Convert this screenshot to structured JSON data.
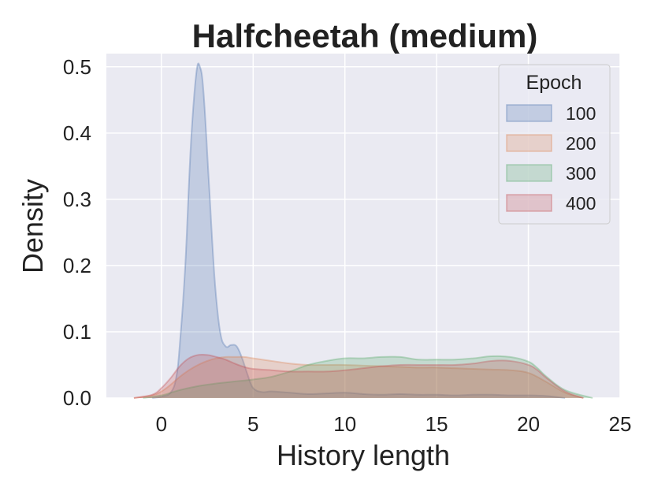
{
  "chart_data": {
    "type": "area",
    "title": "Halfcheetah (medium)",
    "xlabel": "History length",
    "ylabel": "Density",
    "xlim": [
      -3,
      25
    ],
    "ylim": [
      0,
      0.52
    ],
    "xticks": [
      0,
      5,
      10,
      15,
      20,
      25
    ],
    "xtick_labels": [
      "0",
      "5",
      "10",
      "15",
      "20",
      "25"
    ],
    "yticks": [
      0.0,
      0.1,
      0.2,
      0.3,
      0.4,
      0.5
    ],
    "ytick_labels": [
      "0.0",
      "0.1",
      "0.2",
      "0.3",
      "0.4",
      "0.5"
    ],
    "grid": true,
    "legend": {
      "title": "Epoch",
      "placement": "top-right"
    },
    "series": [
      {
        "name": "100",
        "color": "#4c72b0",
        "x": [
          -0.5,
          0.0,
          0.5,
          0.8,
          1.0,
          1.3,
          1.6,
          1.9,
          2.1,
          2.3,
          2.6,
          2.9,
          3.2,
          3.5,
          3.8,
          4.1,
          4.4,
          4.7,
          5.0,
          5.5,
          6.0,
          7.0,
          8.0,
          9.0,
          10.0,
          11.0,
          12.0,
          13.0,
          14.0,
          15.0,
          16.0,
          17.0,
          18.0,
          19.0,
          20.0,
          21.0,
          22.0
        ],
        "y": [
          0.0,
          0.002,
          0.008,
          0.03,
          0.08,
          0.2,
          0.38,
          0.49,
          0.5,
          0.46,
          0.32,
          0.18,
          0.1,
          0.078,
          0.08,
          0.078,
          0.06,
          0.035,
          0.015,
          0.009,
          0.01,
          0.008,
          0.006,
          0.007,
          0.008,
          0.006,
          0.005,
          0.006,
          0.005,
          0.005,
          0.004,
          0.005,
          0.005,
          0.004,
          0.004,
          0.003,
          0.0
        ]
      },
      {
        "name": "200",
        "color": "#dd8452",
        "x": [
          -1.5,
          -0.5,
          0.0,
          0.5,
          1.0,
          1.5,
          2.0,
          2.5,
          3.0,
          3.5,
          4.0,
          4.5,
          5.0,
          6.0,
          7.0,
          8.0,
          9.0,
          10.0,
          11.0,
          12.0,
          13.0,
          14.0,
          15.0,
          16.0,
          17.0,
          18.0,
          19.0,
          20.0,
          21.0,
          22.0,
          23.0
        ],
        "y": [
          0.0,
          0.004,
          0.01,
          0.02,
          0.032,
          0.042,
          0.05,
          0.056,
          0.06,
          0.062,
          0.062,
          0.062,
          0.06,
          0.056,
          0.052,
          0.05,
          0.05,
          0.05,
          0.049,
          0.048,
          0.047,
          0.046,
          0.046,
          0.045,
          0.044,
          0.043,
          0.042,
          0.038,
          0.024,
          0.008,
          0.0
        ]
      },
      {
        "name": "300",
        "color": "#55a868",
        "x": [
          -1.0,
          0.0,
          1.0,
          2.0,
          3.0,
          4.0,
          5.0,
          6.0,
          7.0,
          8.0,
          9.0,
          10.0,
          11.0,
          12.0,
          13.0,
          14.0,
          15.0,
          16.0,
          17.0,
          18.0,
          19.0,
          20.0,
          20.5,
          21.0,
          22.0,
          23.5
        ],
        "y": [
          0.0,
          0.004,
          0.012,
          0.018,
          0.022,
          0.025,
          0.028,
          0.032,
          0.04,
          0.05,
          0.056,
          0.06,
          0.06,
          0.062,
          0.062,
          0.058,
          0.058,
          0.058,
          0.06,
          0.063,
          0.062,
          0.055,
          0.045,
          0.032,
          0.012,
          0.0
        ]
      },
      {
        "name": "400",
        "color": "#c44e52",
        "x": [
          -1.5,
          -0.5,
          0.0,
          0.5,
          1.0,
          1.5,
          2.0,
          2.5,
          3.0,
          3.5,
          4.0,
          4.5,
          5.0,
          6.0,
          7.0,
          8.0,
          9.0,
          10.0,
          11.0,
          12.0,
          13.0,
          14.0,
          15.0,
          16.0,
          17.0,
          18.0,
          19.0,
          20.0,
          20.5,
          21.0,
          22.0,
          23.0
        ],
        "y": [
          0.0,
          0.005,
          0.015,
          0.03,
          0.048,
          0.06,
          0.065,
          0.065,
          0.062,
          0.058,
          0.052,
          0.047,
          0.044,
          0.042,
          0.04,
          0.04,
          0.04,
          0.042,
          0.045,
          0.048,
          0.05,
          0.05,
          0.05,
          0.05,
          0.052,
          0.056,
          0.056,
          0.05,
          0.042,
          0.03,
          0.01,
          0.0
        ]
      }
    ]
  }
}
